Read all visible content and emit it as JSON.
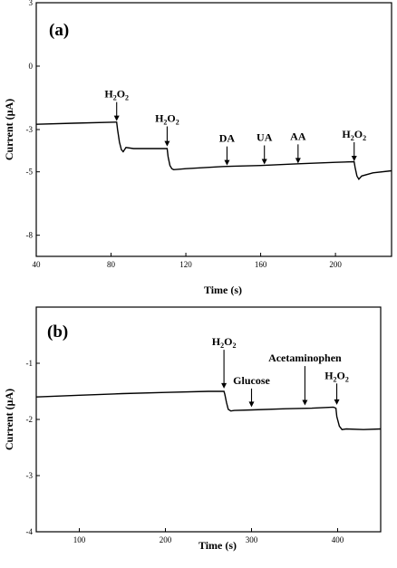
{
  "chart_data": [
    {
      "type": "line",
      "panel_label": "(a)",
      "xlabel": "Time (s)",
      "ylabel": "Current (μA)",
      "xlim": [
        40,
        230
      ],
      "ylim": [
        -9,
        3
      ],
      "xticks": [
        40,
        80,
        120,
        160,
        200
      ],
      "yticks": [
        3,
        0,
        -3,
        -5,
        -8
      ],
      "grid": false,
      "series": [
        {
          "x": [
            40,
            60,
            83,
            83.5,
            84.5,
            85.5,
            86.5,
            88,
            92,
            100,
            110,
            110.5,
            111.5,
            112.5,
            113.5,
            120,
            140,
            160,
            180,
            200,
            210,
            210.5,
            211.5,
            212.5,
            214,
            220,
            230
          ],
          "y": [
            -2.75,
            -2.7,
            -2.65,
            -3.0,
            -3.6,
            -3.95,
            -4.05,
            -3.85,
            -3.9,
            -3.9,
            -3.9,
            -4.3,
            -4.7,
            -4.85,
            -4.9,
            -4.85,
            -4.75,
            -4.7,
            -4.62,
            -4.55,
            -4.52,
            -4.8,
            -5.2,
            -5.35,
            -5.2,
            -5.05,
            -4.95
          ]
        }
      ],
      "annotations": [
        {
          "base": "H",
          "sub": "2",
          "mid": "O",
          "sub2": "2",
          "x": 83,
          "y_tip": -2.6,
          "y_tail": -1.7
        },
        {
          "base": "H",
          "sub": "2",
          "mid": "O",
          "sub2": "2",
          "x": 110,
          "y_tip": -3.8,
          "y_tail": -2.85
        },
        {
          "base": "DA",
          "x": 142,
          "y_tip": -4.7,
          "y_tail": -3.8
        },
        {
          "base": "UA",
          "x": 162,
          "y_tip": -4.65,
          "y_tail": -3.75
        },
        {
          "base": "AA",
          "x": 180,
          "y_tip": -4.6,
          "y_tail": -3.7
        },
        {
          "base": "H",
          "sub": "2",
          "mid": "O",
          "sub2": "2",
          "x": 210,
          "y_tip": -4.5,
          "y_tail": -3.6
        }
      ]
    },
    {
      "type": "line",
      "panel_label": "(b)",
      "xlabel": "Time (s)",
      "ylabel": "Current (μA)",
      "xlim": [
        50,
        450
      ],
      "ylim": [
        -4,
        0
      ],
      "xticks": [
        100,
        200,
        300,
        400
      ],
      "yticks": [
        -1,
        -2,
        -3,
        -4
      ],
      "grid": false,
      "series": [
        {
          "x": [
            50,
            100,
            150,
            200,
            250,
            268,
            269,
            271,
            273,
            276,
            280,
            300,
            340,
            370,
            395,
            398,
            399,
            402,
            405,
            410,
            430,
            450
          ],
          "y": [
            -1.6,
            -1.57,
            -1.54,
            -1.52,
            -1.5,
            -1.5,
            -1.55,
            -1.7,
            -1.82,
            -1.85,
            -1.84,
            -1.83,
            -1.81,
            -1.8,
            -1.78,
            -1.8,
            -1.95,
            -2.12,
            -2.18,
            -2.17,
            -2.18,
            -2.17
          ]
        }
      ],
      "annotations": [
        {
          "base": "H",
          "sub": "2",
          "mid": "O",
          "sub2": "2",
          "x": 268,
          "y_tip": -1.45,
          "y_tail": -0.76
        },
        {
          "base": "Glucose",
          "x": 300,
          "y_tip": -1.78,
          "y_tail": -1.45
        },
        {
          "base": "Acetaminophen",
          "x": 362,
          "y_tip": -1.75,
          "y_tail": -1.05
        },
        {
          "base": "H",
          "sub": "2",
          "mid": "O",
          "sub2": "2",
          "x": 399,
          "y_tip": -1.74,
          "y_tail": -1.36
        }
      ]
    }
  ]
}
